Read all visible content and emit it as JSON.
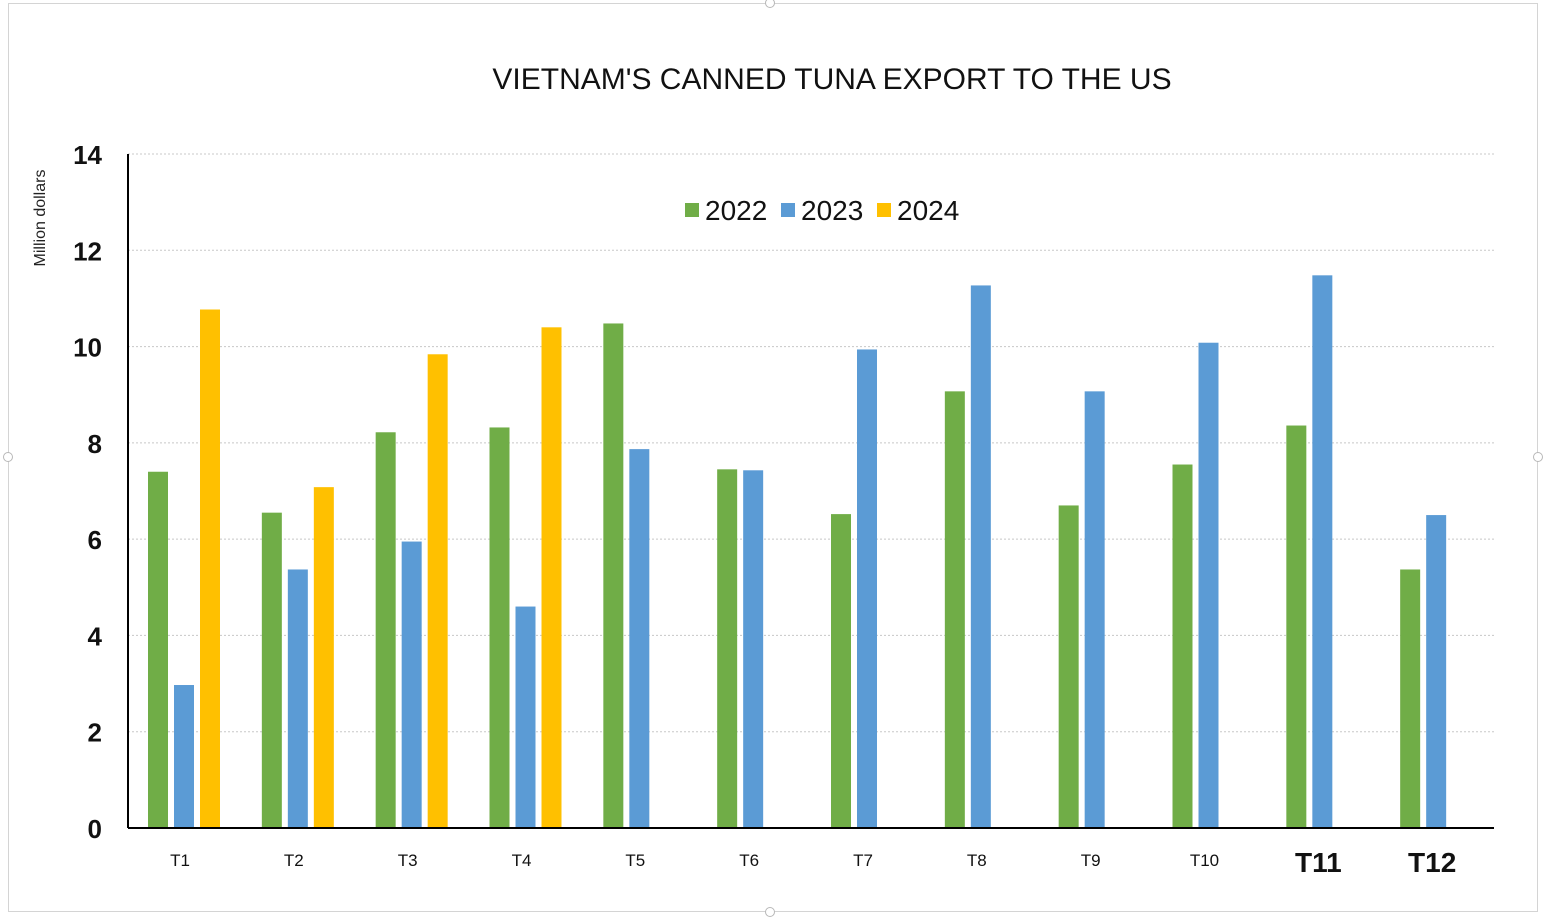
{
  "chart_data": {
    "type": "bar",
    "title": "VIETNAM'S CANNED TUNA EXPORT TO THE US",
    "ylabel": "Million dollars",
    "xlabel": "",
    "categories": [
      "T1",
      "T2",
      "T3",
      "T4",
      "T5",
      "T6",
      "T7",
      "T8",
      "T9",
      "T10",
      "T11",
      "T12"
    ],
    "series": [
      {
        "name": "2022",
        "color": "#70ad47",
        "values": [
          7.4,
          6.55,
          8.22,
          8.32,
          10.48,
          7.45,
          6.52,
          9.07,
          6.7,
          7.55,
          8.36,
          5.37
        ]
      },
      {
        "name": "2023",
        "color": "#5b9bd5",
        "values": [
          2.97,
          5.37,
          5.95,
          4.6,
          7.87,
          7.43,
          9.94,
          11.27,
          9.07,
          10.08,
          11.48,
          6.5
        ]
      },
      {
        "name": "2024",
        "color": "#ffc000",
        "values": [
          10.77,
          7.08,
          9.84,
          10.4,
          null,
          null,
          null,
          null,
          null,
          null,
          null,
          null
        ]
      }
    ],
    "ylim": [
      0,
      14
    ],
    "yticks": [
      0,
      2,
      4,
      6,
      8,
      10,
      12,
      14
    ],
    "grid": true,
    "legend": "top-center"
  }
}
